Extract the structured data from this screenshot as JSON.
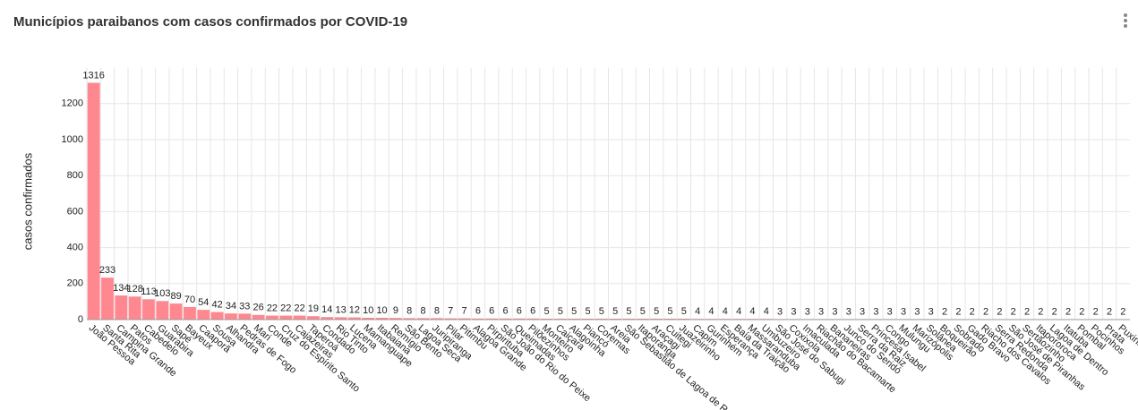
{
  "title": "Municípios paraibanos com casos confirmados por COVID-19",
  "chart_data": {
    "type": "bar",
    "y_label": "casos confirmados",
    "categories": [
      "João Pessoa",
      "Santa Rita",
      "Campina Grande",
      "Patos",
      "Cabedelo",
      "Guarabira",
      "Sapé",
      "Bayeux",
      "Caaporã",
      "Sousa",
      "Alhandra",
      "Pedras de Fogo",
      "Mari",
      "Conde",
      "Cruz do Espírito Santo",
      "Cajazeiras",
      "Taperoá",
      "Condado",
      "Rio Tinto",
      "Lucena",
      "Mamanguape",
      "Itabaiana",
      "Remígio",
      "São Bento",
      "Lagoa Seca",
      "Juripiranga",
      "Pilar",
      "Pitimbu",
      "Alagoa Grande",
      "Pirpirituba",
      "São João do Rio do Peixe",
      "Queimadas",
      "Pilõezinhos",
      "Monteiro",
      "Caiçara",
      "Alagoinha",
      "Piancó",
      "Coremas",
      "Areia",
      "São Sebastião de Lagoa de Roça",
      "Itaporanga",
      "Araçagi",
      "Cuitegi",
      "Juazeirinho",
      "Capim",
      "Gurinhém",
      "Esperança",
      "Baía da Traição",
      "Massaranduba",
      "Umbuzeiro",
      "São José do Sabugi",
      "Coxixola",
      "Imaculada",
      "Riachão do Bacamarte",
      "Bananeiras",
      "Junco do Seridó",
      "Serra da Raiz",
      "Princesa Isabel",
      "Congo",
      "Mulungu",
      "Marizópolis",
      "Solânea",
      "Boqueirão",
      "Sobrado",
      "Gado Bravo",
      "Riacho dos Cavalos",
      "Serra Redonda",
      "São José de Piranhas",
      "Sertãozinho",
      "Itapororoca",
      "Lagoa de Dentro",
      "Itatuba",
      "Pombal",
      "Pocinhos",
      "Prata",
      "Puxinanã"
    ],
    "values": [
      1316,
      233,
      134,
      128,
      113,
      103,
      89,
      70,
      54,
      42,
      34,
      33,
      26,
      22,
      22,
      22,
      19,
      14,
      13,
      12,
      10,
      10,
      9,
      8,
      8,
      8,
      7,
      7,
      6,
      6,
      6,
      6,
      6,
      5,
      5,
      5,
      5,
      5,
      5,
      5,
      5,
      5,
      5,
      5,
      4,
      4,
      4,
      4,
      4,
      4,
      3,
      3,
      3,
      3,
      3,
      3,
      3,
      3,
      3,
      3,
      3,
      3,
      2,
      2,
      2,
      2,
      2,
      2,
      2,
      2,
      2,
      2,
      2,
      2,
      2,
      2
    ],
    "color": "#ff878f",
    "ylim": [
      0,
      1400
    ],
    "yticks": [
      0,
      200,
      400,
      600,
      800,
      1000,
      1200
    ],
    "grid": true
  }
}
